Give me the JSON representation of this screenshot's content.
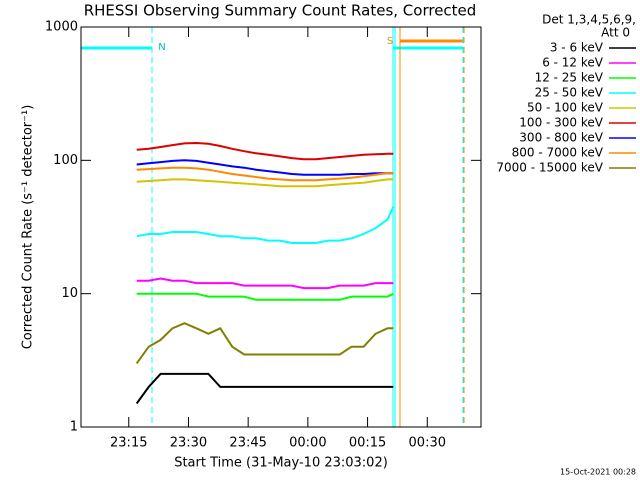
{
  "chart_data": {
    "type": "line",
    "title": "RHESSI Observing Summary Count Rates, Corrected",
    "x_label": "Start Time (31-May-10 23:03:02)",
    "y_label": "Corrected Count Rate (s⁻¹ detector⁻¹)",
    "legend_header": [
      "Det 1,3,4,5,6,9,",
      "Att 0"
    ],
    "legend": "upper right outside",
    "annotations": [
      "N",
      "S"
    ],
    "footer": "15-Oct-2021 00:28",
    "log_y": true,
    "grid": false,
    "xlim": [
      3,
      103.5
    ],
    "xticks": [
      {
        "value": 15,
        "label": "23:15"
      },
      {
        "value": 30,
        "label": "23:30"
      },
      {
        "value": 45,
        "label": "23:45"
      },
      {
        "value": 60,
        "label": "00:00"
      },
      {
        "value": 75,
        "label": "00:15"
      },
      {
        "value": 90,
        "label": "00:30"
      }
    ],
    "ylim": [
      1,
      1000
    ],
    "yticks": [
      1,
      10,
      100,
      1000
    ],
    "x": [
      17,
      20,
      23,
      26,
      29,
      32,
      35,
      38,
      41,
      44,
      47,
      50,
      53,
      56,
      59,
      62,
      65,
      68,
      71,
      74,
      77,
      80,
      81.5
    ],
    "series": [
      {
        "name": "3 - 6 keV",
        "color": "#000000",
        "values": [
          1.5,
          2,
          2.5,
          2.5,
          2.5,
          2.5,
          2.5,
          2,
          2,
          2,
          2,
          2,
          2,
          2,
          2,
          2,
          2,
          2,
          2,
          2,
          2,
          2,
          2
        ]
      },
      {
        "name": "6 - 12 keV",
        "color": "#ff00ff",
        "values": [
          12.5,
          12.5,
          13,
          12.5,
          12.5,
          12,
          12,
          12,
          12,
          11.5,
          11.5,
          11.5,
          11.5,
          11.5,
          11,
          11,
          11,
          11.5,
          11.5,
          11.5,
          12,
          12,
          12
        ]
      },
      {
        "name": "12 - 25 keV",
        "color": "#00ff00",
        "values": [
          10,
          10,
          10,
          10,
          10,
          10,
          9.5,
          9.5,
          9.5,
          9.5,
          9,
          9,
          9,
          9,
          9,
          9,
          9,
          9,
          9.5,
          9.5,
          9.5,
          9.5,
          10
        ]
      },
      {
        "name": "25 - 50 keV",
        "color": "#00ffff",
        "values": [
          27,
          28,
          28,
          29,
          29,
          29,
          28,
          27,
          27,
          26,
          26,
          25,
          25,
          24,
          24,
          24,
          25,
          25,
          26,
          28,
          31,
          36,
          45
        ]
      },
      {
        "name": "50 - 100 keV",
        "color": "#d4c400",
        "values": [
          69,
          70,
          71,
          72,
          72,
          71,
          70,
          69,
          68,
          67,
          66,
          65,
          64,
          64,
          64,
          64,
          65,
          66,
          67,
          68,
          70,
          72,
          72
        ]
      },
      {
        "name": "100 - 300 keV",
        "color": "#dd0000",
        "values": [
          120,
          122,
          126,
          130,
          134,
          135,
          133,
          128,
          122,
          117,
          113,
          110,
          107,
          104,
          102,
          102,
          104,
          106,
          108,
          110,
          111,
          112,
          112
        ]
      },
      {
        "name": "300 - 800 keV",
        "color": "#0000ff",
        "values": [
          93,
          95,
          97,
          99,
          100,
          99,
          96,
          93,
          90,
          88,
          85,
          83,
          81,
          79,
          78,
          78,
          78,
          78,
          79,
          79,
          80,
          80,
          80
        ]
      },
      {
        "name": "800 - 7000 keV",
        "color": "#ff8800",
        "values": [
          85,
          86,
          87,
          88,
          88,
          87,
          85,
          82,
          79,
          77,
          75,
          73,
          72,
          71,
          71,
          71,
          72,
          73,
          74,
          76,
          78,
          80,
          80
        ]
      },
      {
        "name": "7000 - 15000 keV",
        "color": "#808000",
        "values": [
          3,
          4,
          4.5,
          5.5,
          6,
          5.5,
          5,
          5.5,
          4,
          3.5,
          3.5,
          3.5,
          3.5,
          3.5,
          3.5,
          3.5,
          3.5,
          3.5,
          4,
          4,
          5,
          5.5,
          5.5
        ]
      }
    ]
  }
}
